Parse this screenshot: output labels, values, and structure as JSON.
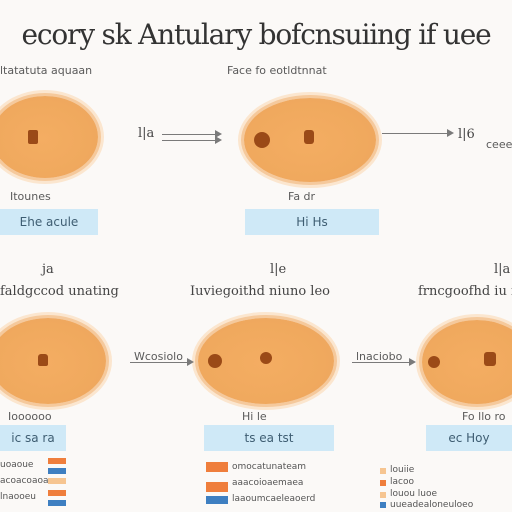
{
  "title": "ecory sk Antulary bofcnsuiing if uee",
  "row1": {
    "header_left": "ltatatuta aquaan",
    "header_mid": "Face fo eotldtnnat",
    "cell_left": {
      "caption": "Itounes",
      "box": "Ehe acule"
    },
    "cell_mid": {
      "caption": "Fa dr",
      "box": "Hi Hs"
    },
    "arrow_left_text": "l|a",
    "arrow_right_text": "l|6",
    "right_note": "ceee"
  },
  "row2": {
    "marker_a": "ja",
    "marker_b": "l|e",
    "marker_c": "l|a",
    "header_left": "faldgccod unating",
    "header_mid": "Iuviegoithd niuno leo",
    "header_right": "frncgoofhd iu ir",
    "cell_left": {
      "caption": "Ioooooo",
      "box": "ic sa ra"
    },
    "cell_mid": {
      "caption": "Hi le",
      "box": "ts ea tst"
    },
    "cell_right": {
      "caption": "Fo llo ro",
      "box": "ec Hoy"
    },
    "arrow_left_text": "Wcosiolo",
    "arrow_right_text": "lnaciobo"
  },
  "legend": {
    "left": [
      "uoaoue",
      "acoacoaoa",
      "lnaooeu"
    ],
    "mid": [
      "omocatunateam",
      "aaacoioaemaea",
      "laaoumcaeleaoerd"
    ],
    "right": [
      "louiie",
      "lacoo",
      "louou luoe",
      "uueadealoneuloeo"
    ]
  },
  "colors": {
    "cell_fill": "#f0a95e",
    "cell_ring": "#f5c99c",
    "nucleus": "#9b4a17",
    "label_box": "#cfe9f7",
    "legend_orange": "#ef7e3c",
    "legend_blue": "#3e7fc1",
    "legend_light": "#f6c591"
  }
}
